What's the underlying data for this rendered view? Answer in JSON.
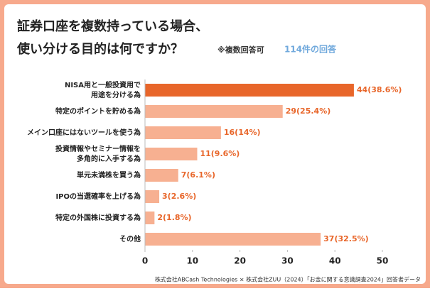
{
  "chart_data": {
    "type": "bar",
    "orientation": "horizontal",
    "title_lines": [
      "証券口座を複数持っている場合、",
      "使い分ける目的は何ですか？"
    ],
    "note": "※複数回答可",
    "response_count": "114件の回答",
    "source": "株式会社ABCash Technologies × 株式会社ZUU（2024）「お金に関する意識調査2024」回答者データ",
    "categories": [
      [
        "NISA用と一般投資用で",
        "用途を分ける為"
      ],
      [
        "特定のポイントを貯める為"
      ],
      [
        "メイン口座にはないツールを使う為"
      ],
      [
        "投資情報やセミナー情報を",
        "多角的に入手する為"
      ],
      [
        "単元未満株を買う為"
      ],
      [
        "IPOの当選確率を上げる為"
      ],
      [
        "特定の外国株に投資する為"
      ],
      [
        "その他"
      ]
    ],
    "values": [
      44,
      29,
      16,
      11,
      7,
      3,
      2,
      37
    ],
    "value_labels": [
      "44(38.6%)",
      "29(25.4%)",
      "16(14%)",
      "11(9.6%)",
      "7(6.1%)",
      "3(2.6%)",
      "2(1.8%)",
      "37(32.5%)"
    ],
    "colors": [
      "#e8662a",
      "#f7b091",
      "#f7b091",
      "#f7b091",
      "#f7b091",
      "#f7b091",
      "#f7b091",
      "#f7b091"
    ],
    "label_color": "#e8662a",
    "xlim": [
      0,
      50
    ],
    "xticks": [
      0,
      10,
      20,
      30,
      40,
      50
    ],
    "grid": false
  }
}
